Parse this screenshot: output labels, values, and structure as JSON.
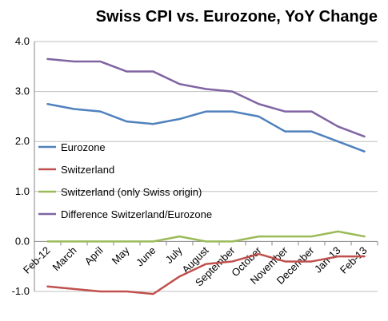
{
  "chart_data": {
    "type": "line",
    "title": "Swiss CPI vs. Eurozone, YoY Change",
    "xlabel": "",
    "ylabel": "",
    "categories": [
      "Feb-12",
      "March",
      "April",
      "May",
      "June",
      "July",
      "August",
      "September",
      "October",
      "November",
      "December",
      "Jan-13",
      "Feb-13"
    ],
    "ylim": [
      -1.0,
      4.0
    ],
    "yticks": [
      "-1.0",
      "0.0",
      "1.0",
      "2.0",
      "3.0",
      "4.0"
    ],
    "ytick_values": [
      -1.0,
      0.0,
      1.0,
      2.0,
      3.0,
      4.0
    ],
    "grid": "horizontal major gridlines",
    "legend_position": "left-center",
    "series": [
      {
        "name": "Eurozone",
        "color": "#4F81BD",
        "values": [
          2.75,
          2.65,
          2.6,
          2.4,
          2.35,
          2.45,
          2.6,
          2.6,
          2.5,
          2.2,
          2.2,
          2.0,
          1.8
        ]
      },
      {
        "name": "Switzerland",
        "color": "#C0504D",
        "values": [
          -0.9,
          -0.95,
          -1.0,
          -1.0,
          -1.05,
          -0.7,
          -0.45,
          -0.4,
          -0.25,
          -0.4,
          -0.4,
          -0.3,
          -0.3
        ]
      },
      {
        "name": "Switzerland (only Swiss origin)",
        "color": "#9BBB59",
        "values": [
          0.0,
          0.0,
          0.0,
          0.0,
          0.0,
          0.1,
          0.0,
          0.0,
          0.1,
          0.1,
          0.1,
          0.2,
          0.1
        ]
      },
      {
        "name": "Difference Switzerland/Eurozone",
        "color": "#8064A2",
        "values": [
          3.65,
          3.6,
          3.6,
          3.4,
          3.4,
          3.15,
          3.05,
          3.0,
          2.75,
          2.6,
          2.6,
          2.3,
          2.1
        ]
      }
    ]
  }
}
